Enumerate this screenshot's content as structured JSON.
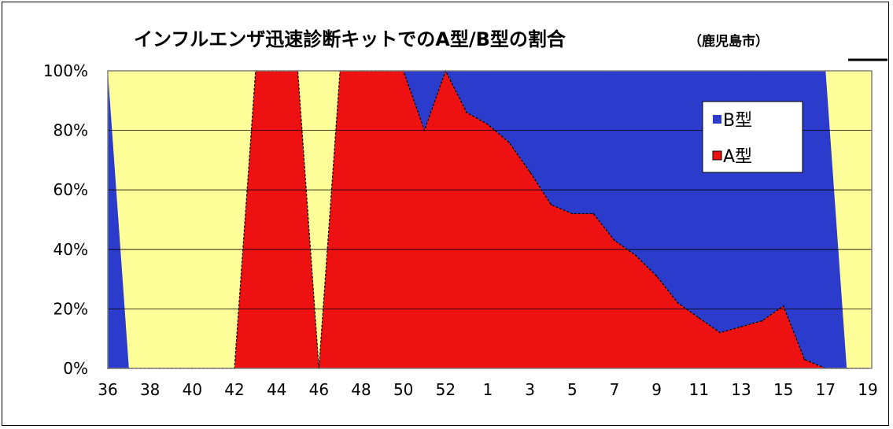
{
  "chart_data": {
    "type": "area",
    "title": "インフルエンザ迅速診断キットでのA型/B型の割合",
    "subtitle": "（鹿児島市）",
    "xlabel": "",
    "ylabel": "",
    "ylim": [
      0,
      100
    ],
    "grid": true,
    "legend_position": "top-right",
    "colors": {
      "B型": "#2b3bcc",
      "A型": "#ee1111",
      "no_data": "#ffff99"
    },
    "x_tick_labels": [
      "36",
      "38",
      "40",
      "42",
      "44",
      "46",
      "48",
      "50",
      "52",
      "1",
      "3",
      "5",
      "7",
      "9",
      "11",
      "13",
      "15",
      "17",
      "19"
    ],
    "y_tick_labels": [
      "0%",
      "20%",
      "40%",
      "60%",
      "80%",
      "100%"
    ],
    "x_weeks": [
      36,
      37,
      38,
      39,
      40,
      41,
      42,
      43,
      44,
      45,
      46,
      47,
      48,
      49,
      50,
      51,
      52,
      1,
      2,
      3,
      4,
      5,
      6,
      7,
      8,
      9,
      10,
      11,
      12,
      13,
      14,
      15,
      16,
      17,
      18,
      19,
      20
    ],
    "series": [
      {
        "name": "A型",
        "values": [
          0,
          0,
          0,
          0,
          0,
          0,
          0,
          100,
          100,
          100,
          0,
          100,
          100,
          100,
          100,
          80,
          100,
          86,
          82,
          76,
          66,
          55,
          52,
          52,
          43,
          38,
          31,
          22,
          17,
          12,
          14,
          16,
          21,
          3,
          0,
          0,
          0
        ]
      },
      {
        "name": "B型",
        "values": [
          100,
          0,
          0,
          0,
          0,
          0,
          0,
          0,
          0,
          0,
          0,
          0,
          0,
          0,
          0,
          20,
          0,
          14,
          18,
          24,
          34,
          45,
          48,
          48,
          57,
          62,
          69,
          78,
          83,
          88,
          86,
          84,
          79,
          97,
          100,
          0,
          0
        ]
      }
    ]
  }
}
